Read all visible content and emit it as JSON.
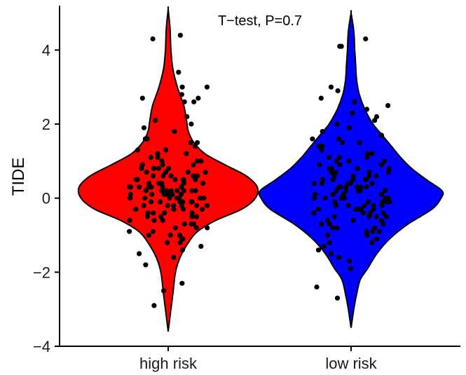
{
  "chart_data": {
    "type": "violin",
    "title": "",
    "annotation": "T−test, P=0.7",
    "xlabel": "",
    "ylabel": "TIDE",
    "categories": [
      "high risk",
      "low risk"
    ],
    "ylim": [
      -4,
      5.2
    ],
    "yticks": [
      -4,
      -2,
      0,
      2,
      4
    ],
    "ytick_labels": [
      "−4",
      "−2",
      "0",
      "2",
      "4"
    ],
    "grid": false,
    "legend": "none",
    "colors": {
      "high risk": "#ff0000",
      "low risk": "#0000ff",
      "points": "#000000",
      "outline": "#000000"
    },
    "groups": [
      {
        "name": "high risk",
        "min": -3.6,
        "max": 5.1,
        "median": 0.3,
        "density": [
          [
            -3.6,
            0.0
          ],
          [
            -3.2,
            0.02
          ],
          [
            -2.6,
            0.05
          ],
          [
            -2.0,
            0.08
          ],
          [
            -1.6,
            0.13
          ],
          [
            -1.2,
            0.22
          ],
          [
            -0.9,
            0.32
          ],
          [
            -0.6,
            0.52
          ],
          [
            -0.3,
            0.8
          ],
          [
            0.0,
            0.95
          ],
          [
            0.3,
            0.97
          ],
          [
            0.6,
            0.85
          ],
          [
            0.9,
            0.62
          ],
          [
            1.2,
            0.4
          ],
          [
            1.5,
            0.28
          ],
          [
            1.8,
            0.22
          ],
          [
            2.1,
            0.2
          ],
          [
            2.5,
            0.17
          ],
          [
            3.0,
            0.1
          ],
          [
            3.5,
            0.05
          ],
          [
            4.0,
            0.03
          ],
          [
            4.6,
            0.02
          ],
          [
            5.1,
            0.0
          ]
        ],
        "points": [
          4.4,
          4.3,
          3.4,
          3.0,
          3.0,
          2.8,
          2.7,
          2.7,
          2.6,
          2.6,
          2.2,
          2.1,
          2.0,
          1.9,
          1.8,
          1.6,
          1.6,
          1.5,
          1.5,
          1.4,
          1.3,
          1.3,
          1.2,
          1.2,
          1.1,
          1.1,
          1.0,
          1.0,
          1.0,
          0.9,
          0.9,
          0.9,
          0.8,
          0.8,
          0.8,
          0.8,
          0.7,
          0.7,
          0.7,
          0.7,
          0.6,
          0.6,
          0.6,
          0.6,
          0.6,
          0.5,
          0.5,
          0.5,
          0.5,
          0.5,
          0.5,
          0.4,
          0.4,
          0.4,
          0.4,
          0.4,
          0.4,
          0.4,
          0.3,
          0.3,
          0.3,
          0.3,
          0.3,
          0.3,
          0.3,
          0.3,
          0.2,
          0.2,
          0.2,
          0.2,
          0.2,
          0.2,
          0.2,
          0.2,
          0.1,
          0.1,
          0.1,
          0.1,
          0.1,
          0.1,
          0.1,
          0.0,
          0.0,
          0.0,
          0.0,
          0.0,
          0.0,
          0.0,
          -0.1,
          -0.1,
          -0.1,
          -0.1,
          -0.1,
          -0.1,
          -0.2,
          -0.2,
          -0.2,
          -0.2,
          -0.2,
          -0.2,
          -0.3,
          -0.3,
          -0.3,
          -0.3,
          -0.3,
          -0.4,
          -0.4,
          -0.4,
          -0.4,
          -0.5,
          -0.5,
          -0.5,
          -0.5,
          -0.6,
          -0.6,
          -0.6,
          -0.7,
          -0.7,
          -0.7,
          -0.8,
          -0.8,
          -0.8,
          -0.9,
          -0.9,
          -1.0,
          -1.0,
          -1.0,
          -1.1,
          -1.1,
          -1.2,
          -1.2,
          -1.3,
          -1.4,
          -1.5,
          -1.6,
          -1.8,
          -2.3,
          -2.5,
          -2.9
        ]
      },
      {
        "name": "low risk",
        "min": -3.5,
        "max": 5.0,
        "median": 0.2,
        "density": [
          [
            -3.5,
            0.0
          ],
          [
            -3.0,
            0.03
          ],
          [
            -2.6,
            0.06
          ],
          [
            -2.2,
            0.1
          ],
          [
            -1.9,
            0.18
          ],
          [
            -1.5,
            0.28
          ],
          [
            -1.1,
            0.42
          ],
          [
            -0.7,
            0.62
          ],
          [
            -0.3,
            0.88
          ],
          [
            0.0,
            0.98
          ],
          [
            0.2,
            0.99
          ],
          [
            0.5,
            0.82
          ],
          [
            0.8,
            0.66
          ],
          [
            1.1,
            0.54
          ],
          [
            1.4,
            0.44
          ],
          [
            1.7,
            0.34
          ],
          [
            2.0,
            0.24
          ],
          [
            2.4,
            0.15
          ],
          [
            2.8,
            0.09
          ],
          [
            3.2,
            0.06
          ],
          [
            3.6,
            0.05
          ],
          [
            4.0,
            0.04
          ],
          [
            4.5,
            0.03
          ],
          [
            5.0,
            0.0
          ]
        ],
        "points": [
          4.3,
          4.1,
          4.1,
          3.0,
          2.9,
          2.7,
          2.6,
          2.5,
          2.4,
          2.3,
          2.2,
          2.1,
          2.0,
          1.9,
          1.9,
          1.8,
          1.7,
          1.6,
          1.6,
          1.5,
          1.5,
          1.4,
          1.4,
          1.3,
          1.3,
          1.2,
          1.2,
          1.1,
          1.1,
          1.1,
          1.0,
          1.0,
          1.0,
          0.9,
          0.9,
          0.9,
          0.8,
          0.8,
          0.8,
          0.8,
          0.7,
          0.7,
          0.7,
          0.7,
          0.6,
          0.6,
          0.6,
          0.6,
          0.5,
          0.5,
          0.5,
          0.5,
          0.5,
          0.4,
          0.4,
          0.4,
          0.4,
          0.4,
          0.3,
          0.3,
          0.3,
          0.3,
          0.3,
          0.3,
          0.2,
          0.2,
          0.2,
          0.2,
          0.2,
          0.2,
          0.1,
          0.1,
          0.1,
          0.1,
          0.1,
          0.1,
          0.0,
          0.0,
          0.0,
          0.0,
          0.0,
          0.0,
          -0.1,
          -0.1,
          -0.1,
          -0.1,
          -0.1,
          -0.2,
          -0.2,
          -0.2,
          -0.2,
          -0.2,
          -0.3,
          -0.3,
          -0.3,
          -0.3,
          -0.3,
          -0.4,
          -0.4,
          -0.4,
          -0.4,
          -0.5,
          -0.5,
          -0.5,
          -0.5,
          -0.6,
          -0.6,
          -0.6,
          -0.7,
          -0.7,
          -0.7,
          -0.8,
          -0.8,
          -0.8,
          -0.9,
          -0.9,
          -0.9,
          -1.0,
          -1.0,
          -1.1,
          -1.1,
          -1.2,
          -1.2,
          -1.3,
          -1.4,
          -1.5,
          -1.6,
          -1.7,
          -1.9,
          -2.4,
          -2.7
        ]
      }
    ]
  }
}
